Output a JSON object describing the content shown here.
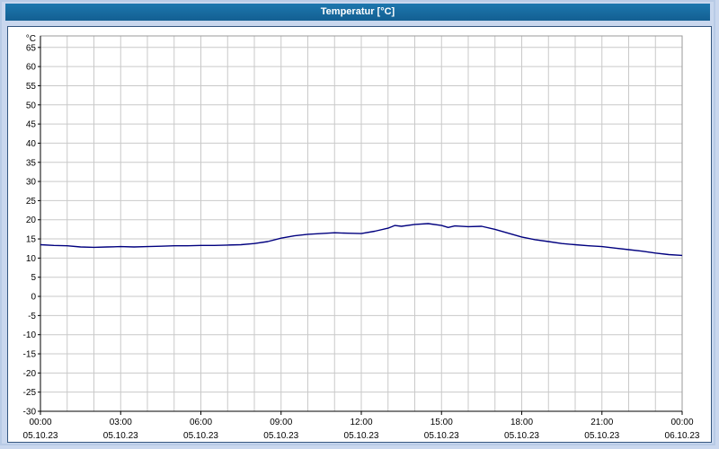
{
  "window": {
    "title": "Temperatur [°C]"
  },
  "colors": {
    "titlebar": "#17699c",
    "page_background": "#c9d7ee",
    "plot_background": "#ffffff",
    "gridline": "#c9c9c9",
    "axis": "#000000",
    "series_line": "#00007f"
  },
  "chart_data": {
    "type": "line",
    "title": "Temperatur [°C]",
    "ylabel": "°C",
    "unit_label": "°C",
    "ylim": [
      -30,
      68
    ],
    "grid": true,
    "legend": "none",
    "y_ticks": [
      65,
      60,
      55,
      50,
      45,
      40,
      35,
      30,
      25,
      20,
      15,
      10,
      5,
      0,
      -5,
      -10,
      -15,
      -20,
      -25,
      -30
    ],
    "x_range_hours": [
      0,
      24
    ],
    "x_ticks": [
      {
        "hour": 0,
        "time": "00:00",
        "date": "05.10.23"
      },
      {
        "hour": 3,
        "time": "03:00",
        "date": "05.10.23"
      },
      {
        "hour": 6,
        "time": "06:00",
        "date": "05.10.23"
      },
      {
        "hour": 9,
        "time": "09:00",
        "date": "05.10.23"
      },
      {
        "hour": 12,
        "time": "12:00",
        "date": "05.10.23"
      },
      {
        "hour": 15,
        "time": "15:00",
        "date": "05.10.23"
      },
      {
        "hour": 18,
        "time": "18:00",
        "date": "05.10.23"
      },
      {
        "hour": 21,
        "time": "21:00",
        "date": "05.10.23"
      },
      {
        "hour": 24,
        "time": "00:00",
        "date": "06.10.23"
      }
    ],
    "series": [
      {
        "name": "Temperatur",
        "color": "#00007f",
        "x": [
          0,
          0.5,
          1,
          1.5,
          2,
          2.5,
          3,
          3.5,
          4,
          4.5,
          5,
          5.5,
          6,
          6.5,
          7,
          7.5,
          8,
          8.5,
          9,
          9.5,
          10,
          10.5,
          11,
          11.5,
          12,
          12.5,
          13,
          13.25,
          13.5,
          14,
          14.5,
          15,
          15.25,
          15.5,
          16,
          16.5,
          17,
          17.5,
          18,
          18.5,
          19,
          19.5,
          20,
          20.5,
          21,
          21.5,
          22,
          22.5,
          23,
          23.5,
          24
        ],
        "values": [
          13.5,
          13.3,
          13.2,
          12.9,
          12.8,
          12.9,
          13.0,
          12.9,
          13.0,
          13.1,
          13.2,
          13.2,
          13.3,
          13.3,
          13.4,
          13.5,
          13.8,
          14.3,
          15.2,
          15.8,
          16.2,
          16.4,
          16.6,
          16.5,
          16.4,
          17.0,
          17.8,
          18.5,
          18.3,
          18.8,
          19.0,
          18.5,
          18.0,
          18.4,
          18.2,
          18.3,
          17.5,
          16.5,
          15.5,
          14.8,
          14.3,
          13.8,
          13.5,
          13.2,
          13.0,
          12.6,
          12.2,
          11.8,
          11.3,
          10.9,
          10.7
        ]
      }
    ]
  }
}
